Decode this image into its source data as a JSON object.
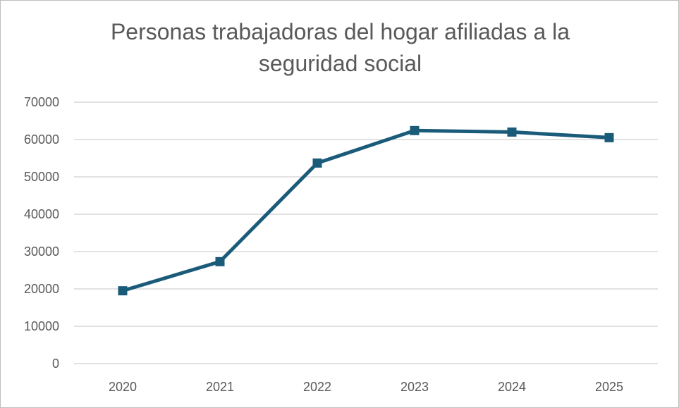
{
  "chart_data": {
    "type": "line",
    "title": "Personas trabajadoras del hogar afiliadas a la\nseguridad social",
    "xlabel": "",
    "ylabel": "",
    "categories": [
      "2020",
      "2021",
      "2022",
      "2023",
      "2024",
      "2025"
    ],
    "series": [
      {
        "values": [
          19500,
          27300,
          53700,
          62400,
          62000,
          60500
        ],
        "color": "#1b5b7a",
        "marker": "square"
      }
    ],
    "ylim": [
      0,
      70000
    ],
    "yticks": [
      "0",
      "10000",
      "20000",
      "30000",
      "40000",
      "50000",
      "60000",
      "70000"
    ],
    "grid": true,
    "legend": "none"
  }
}
